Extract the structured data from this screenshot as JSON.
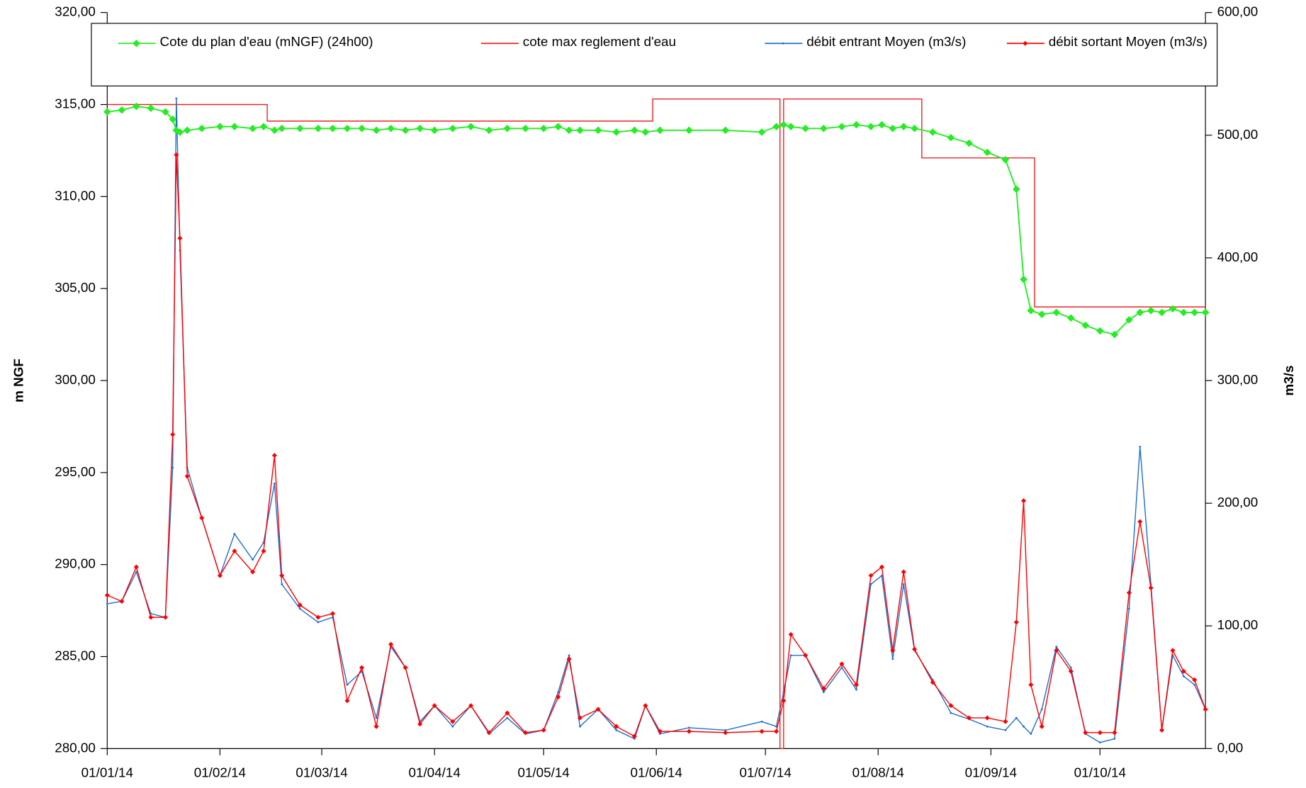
{
  "chart_data": {
    "type": "line",
    "xlim": [
      "01/01/14",
      "30/10/14"
    ],
    "xticks": [
      "01/01/14",
      "01/02/14",
      "01/03/14",
      "01/04/14",
      "01/05/14",
      "01/06/14",
      "01/07/14",
      "01/08/14",
      "01/09/14",
      "01/10/14"
    ],
    "ylabel": "m NGF",
    "y2label": "m3/s",
    "ylim": [
      280,
      320
    ],
    "yticks": [
      {
        "value": 280,
        "label": "280,00"
      },
      {
        "value": 285,
        "label": "285,00"
      },
      {
        "value": 290,
        "label": "290,00"
      },
      {
        "value": 295,
        "label": "295,00"
      },
      {
        "value": 300,
        "label": "300,00"
      },
      {
        "value": 305,
        "label": "305,00"
      },
      {
        "value": 310,
        "label": "310,00"
      },
      {
        "value": 315,
        "label": "315,00"
      },
      {
        "value": 320,
        "label": "320,00"
      }
    ],
    "y2lim": [
      0,
      600
    ],
    "y2ticks": [
      {
        "value": 0,
        "label": "0,00"
      },
      {
        "value": 100,
        "label": "100,00"
      },
      {
        "value": 200,
        "label": "200,00"
      },
      {
        "value": 300,
        "label": "300,00"
      },
      {
        "value": 400,
        "label": "400,00"
      },
      {
        "value": 500,
        "label": "500,00"
      },
      {
        "value": 600,
        "label": "600,00"
      }
    ],
    "x": [
      "01/01/14",
      "05/01/14",
      "09/01/14",
      "13/01/14",
      "17/01/14",
      "19/01/14",
      "20/01/14",
      "21/01/14",
      "23/01/14",
      "27/01/14",
      "01/02/14",
      "05/02/14",
      "10/02/14",
      "13/02/14",
      "16/02/14",
      "18/02/14",
      "23/02/14",
      "28/02/14",
      "04/03/14",
      "08/03/14",
      "12/03/14",
      "16/03/14",
      "20/03/14",
      "24/03/14",
      "28/03/14",
      "01/04/14",
      "06/04/14",
      "11/04/14",
      "16/04/14",
      "21/04/14",
      "26/04/14",
      "01/05/14",
      "05/05/14",
      "08/05/14",
      "11/05/14",
      "16/05/14",
      "21/05/14",
      "26/05/14",
      "29/05/14",
      "02/06/14",
      "10/06/14",
      "20/06/14",
      "30/06/14",
      "04/07/14",
      "06/07/14",
      "08/07/14",
      "12/07/14",
      "17/07/14",
      "22/07/14",
      "26/07/14",
      "30/07/14",
      "02/08/14",
      "05/08/14",
      "08/08/14",
      "11/08/14",
      "16/08/14",
      "21/08/14",
      "26/08/14",
      "31/08/14",
      "05/09/14",
      "08/09/14",
      "10/09/14",
      "12/09/14",
      "15/09/14",
      "19/09/14",
      "23/09/14",
      "27/09/14",
      "01/10/14",
      "05/10/14",
      "09/10/14",
      "12/10/14",
      "15/10/14",
      "18/10/14",
      "21/10/14",
      "24/10/14",
      "27/10/14",
      "30/10/14"
    ],
    "series": [
      {
        "name": "Cote du plan d'eau (mNGF) (24h00)",
        "color": "#22ee22",
        "marker": "diamond",
        "axis": "y",
        "values": [
          314.6,
          314.7,
          314.9,
          314.8,
          314.6,
          314.2,
          313.6,
          313.5,
          313.6,
          313.7,
          313.8,
          313.8,
          313.7,
          313.8,
          313.6,
          313.7,
          313.7,
          313.7,
          313.7,
          313.7,
          313.7,
          313.6,
          313.7,
          313.6,
          313.7,
          313.6,
          313.7,
          313.8,
          313.6,
          313.7,
          313.7,
          313.7,
          313.8,
          313.6,
          313.6,
          313.6,
          313.5,
          313.6,
          313.5,
          313.6,
          313.6,
          313.6,
          313.5,
          313.8,
          313.9,
          313.8,
          313.7,
          313.7,
          313.8,
          313.9,
          313.8,
          313.9,
          313.7,
          313.8,
          313.7,
          313.5,
          313.2,
          312.9,
          312.4,
          312.0,
          310.4,
          305.5,
          303.8,
          303.6,
          303.7,
          303.4,
          303.0,
          302.7,
          302.5,
          303.3,
          303.7,
          303.8,
          303.7,
          303.9,
          303.7,
          303.7,
          303.7
        ]
      },
      {
        "name": "cote max reglement d'eau",
        "color": "#ee2222",
        "marker": "none",
        "step": true,
        "axis": "y",
        "x": [
          "01/01/14",
          "14/02/14",
          "31/05/14",
          "05/07/14",
          "06/07/14",
          "13/08/14",
          "13/09/14",
          "30/10/14"
        ],
        "values": [
          315,
          314.1,
          315.3,
          280,
          315.3,
          312.1,
          304,
          304
        ]
      },
      {
        "name": "débit entrant Moyen (m3/s)",
        "color": "#1f6fd0",
        "marker": "dot",
        "axis": "y2",
        "values": [
          118,
          120,
          144,
          110,
          107,
          229,
          530,
          406,
          229,
          188,
          141,
          175,
          154,
          168,
          216,
          134,
          114,
          103,
          107,
          52,
          63,
          25,
          83,
          66,
          22,
          35,
          18,
          35,
          12,
          25,
          12,
          15,
          46,
          76,
          18,
          32,
          15,
          8,
          35,
          12,
          17,
          15,
          22,
          18,
          46,
          76,
          76,
          46,
          66,
          48,
          134,
          141,
          73,
          134,
          80,
          56,
          29,
          24,
          18,
          15,
          25,
          18,
          12,
          32,
          83,
          66,
          12,
          5,
          8,
          114,
          246,
          134,
          15,
          76,
          59,
          52,
          32
        ]
      },
      {
        "name": "débit sortant Moyen (m3/s)",
        "color": "#ff0000",
        "marker": "diamond-small",
        "axis": "y2",
        "values": [
          125,
          120,
          148,
          107,
          107,
          256,
          484,
          416,
          222,
          188,
          141,
          161,
          144,
          161,
          239,
          141,
          117,
          107,
          110,
          39,
          66,
          18,
          85,
          66,
          20,
          35,
          22,
          35,
          13,
          29,
          13,
          15,
          42,
          73,
          25,
          32,
          18,
          10,
          35,
          14,
          14,
          13,
          14,
          14,
          39,
          93,
          76,
          49,
          69,
          52,
          141,
          148,
          80,
          144,
          81,
          54,
          35,
          25,
          25,
          22,
          103,
          202,
          52,
          18,
          80,
          63,
          13,
          13,
          13,
          127,
          185,
          131,
          15,
          80,
          63,
          56,
          32
        ]
      }
    ]
  }
}
